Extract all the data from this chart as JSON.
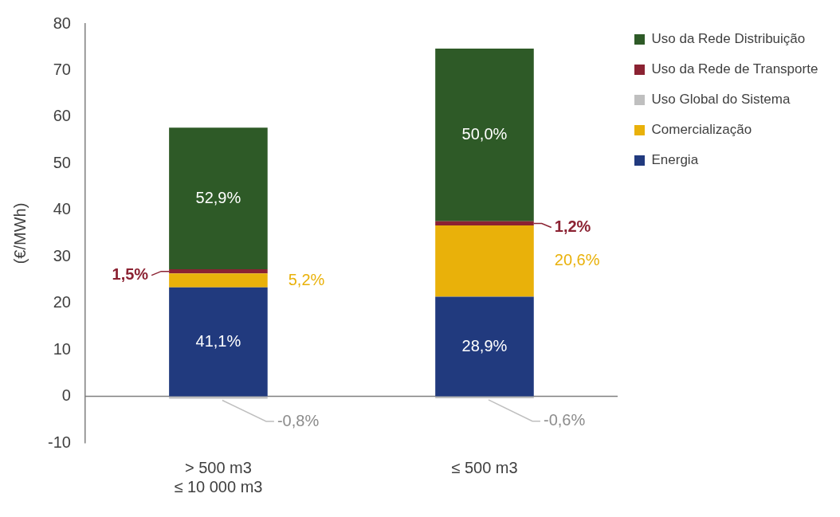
{
  "chart_data": {
    "type": "bar",
    "stacked": true,
    "ylabel": "(€/MWh)",
    "categories": [
      "> 500 m3\n≤ 10 000 m3",
      "≤ 500 m3"
    ],
    "ylim": [
      -10,
      80
    ],
    "yticks": [
      -10,
      0,
      10,
      20,
      30,
      40,
      50,
      60,
      70,
      80
    ],
    "grid": false,
    "legend": "top right",
    "series": [
      {
        "name": "Energia",
        "color": "#213a7e",
        "values": [
          23.4,
          21.4
        ]
      },
      {
        "name": "Comercialização",
        "color": "#e9b10a",
        "values": [
          3.0,
          15.3
        ]
      },
      {
        "name": "Uso Global do Sistema",
        "color": "#bfbfbf",
        "values": [
          -0.5,
          -0.4
        ]
      },
      {
        "name": "Uso da Rede de Transporte",
        "color": "#8b2232",
        "values": [
          0.9,
          0.9
        ]
      },
      {
        "name": "Uso da Rede Distribuição",
        "color": "#2e5a27",
        "values": [
          30.4,
          37.1
        ]
      }
    ],
    "ref_lines": [
      {
        "axis": "y",
        "value": 0,
        "color": "#7f7f7f"
      }
    ],
    "annotations": [
      "41,1%",
      "5,2%",
      {
        "text": "-0,8%",
        "x": "> 500 m3\n≤ 10 000 m3",
        "y": -0.5
      },
      "1,5%",
      "52,9%",
      "28,9%",
      "20,6%",
      {
        "text": "-0,6%",
        "x": "≤ 500 m3",
        "y": -0.4
      },
      "1,2%",
      "50,0%"
    ]
  }
}
